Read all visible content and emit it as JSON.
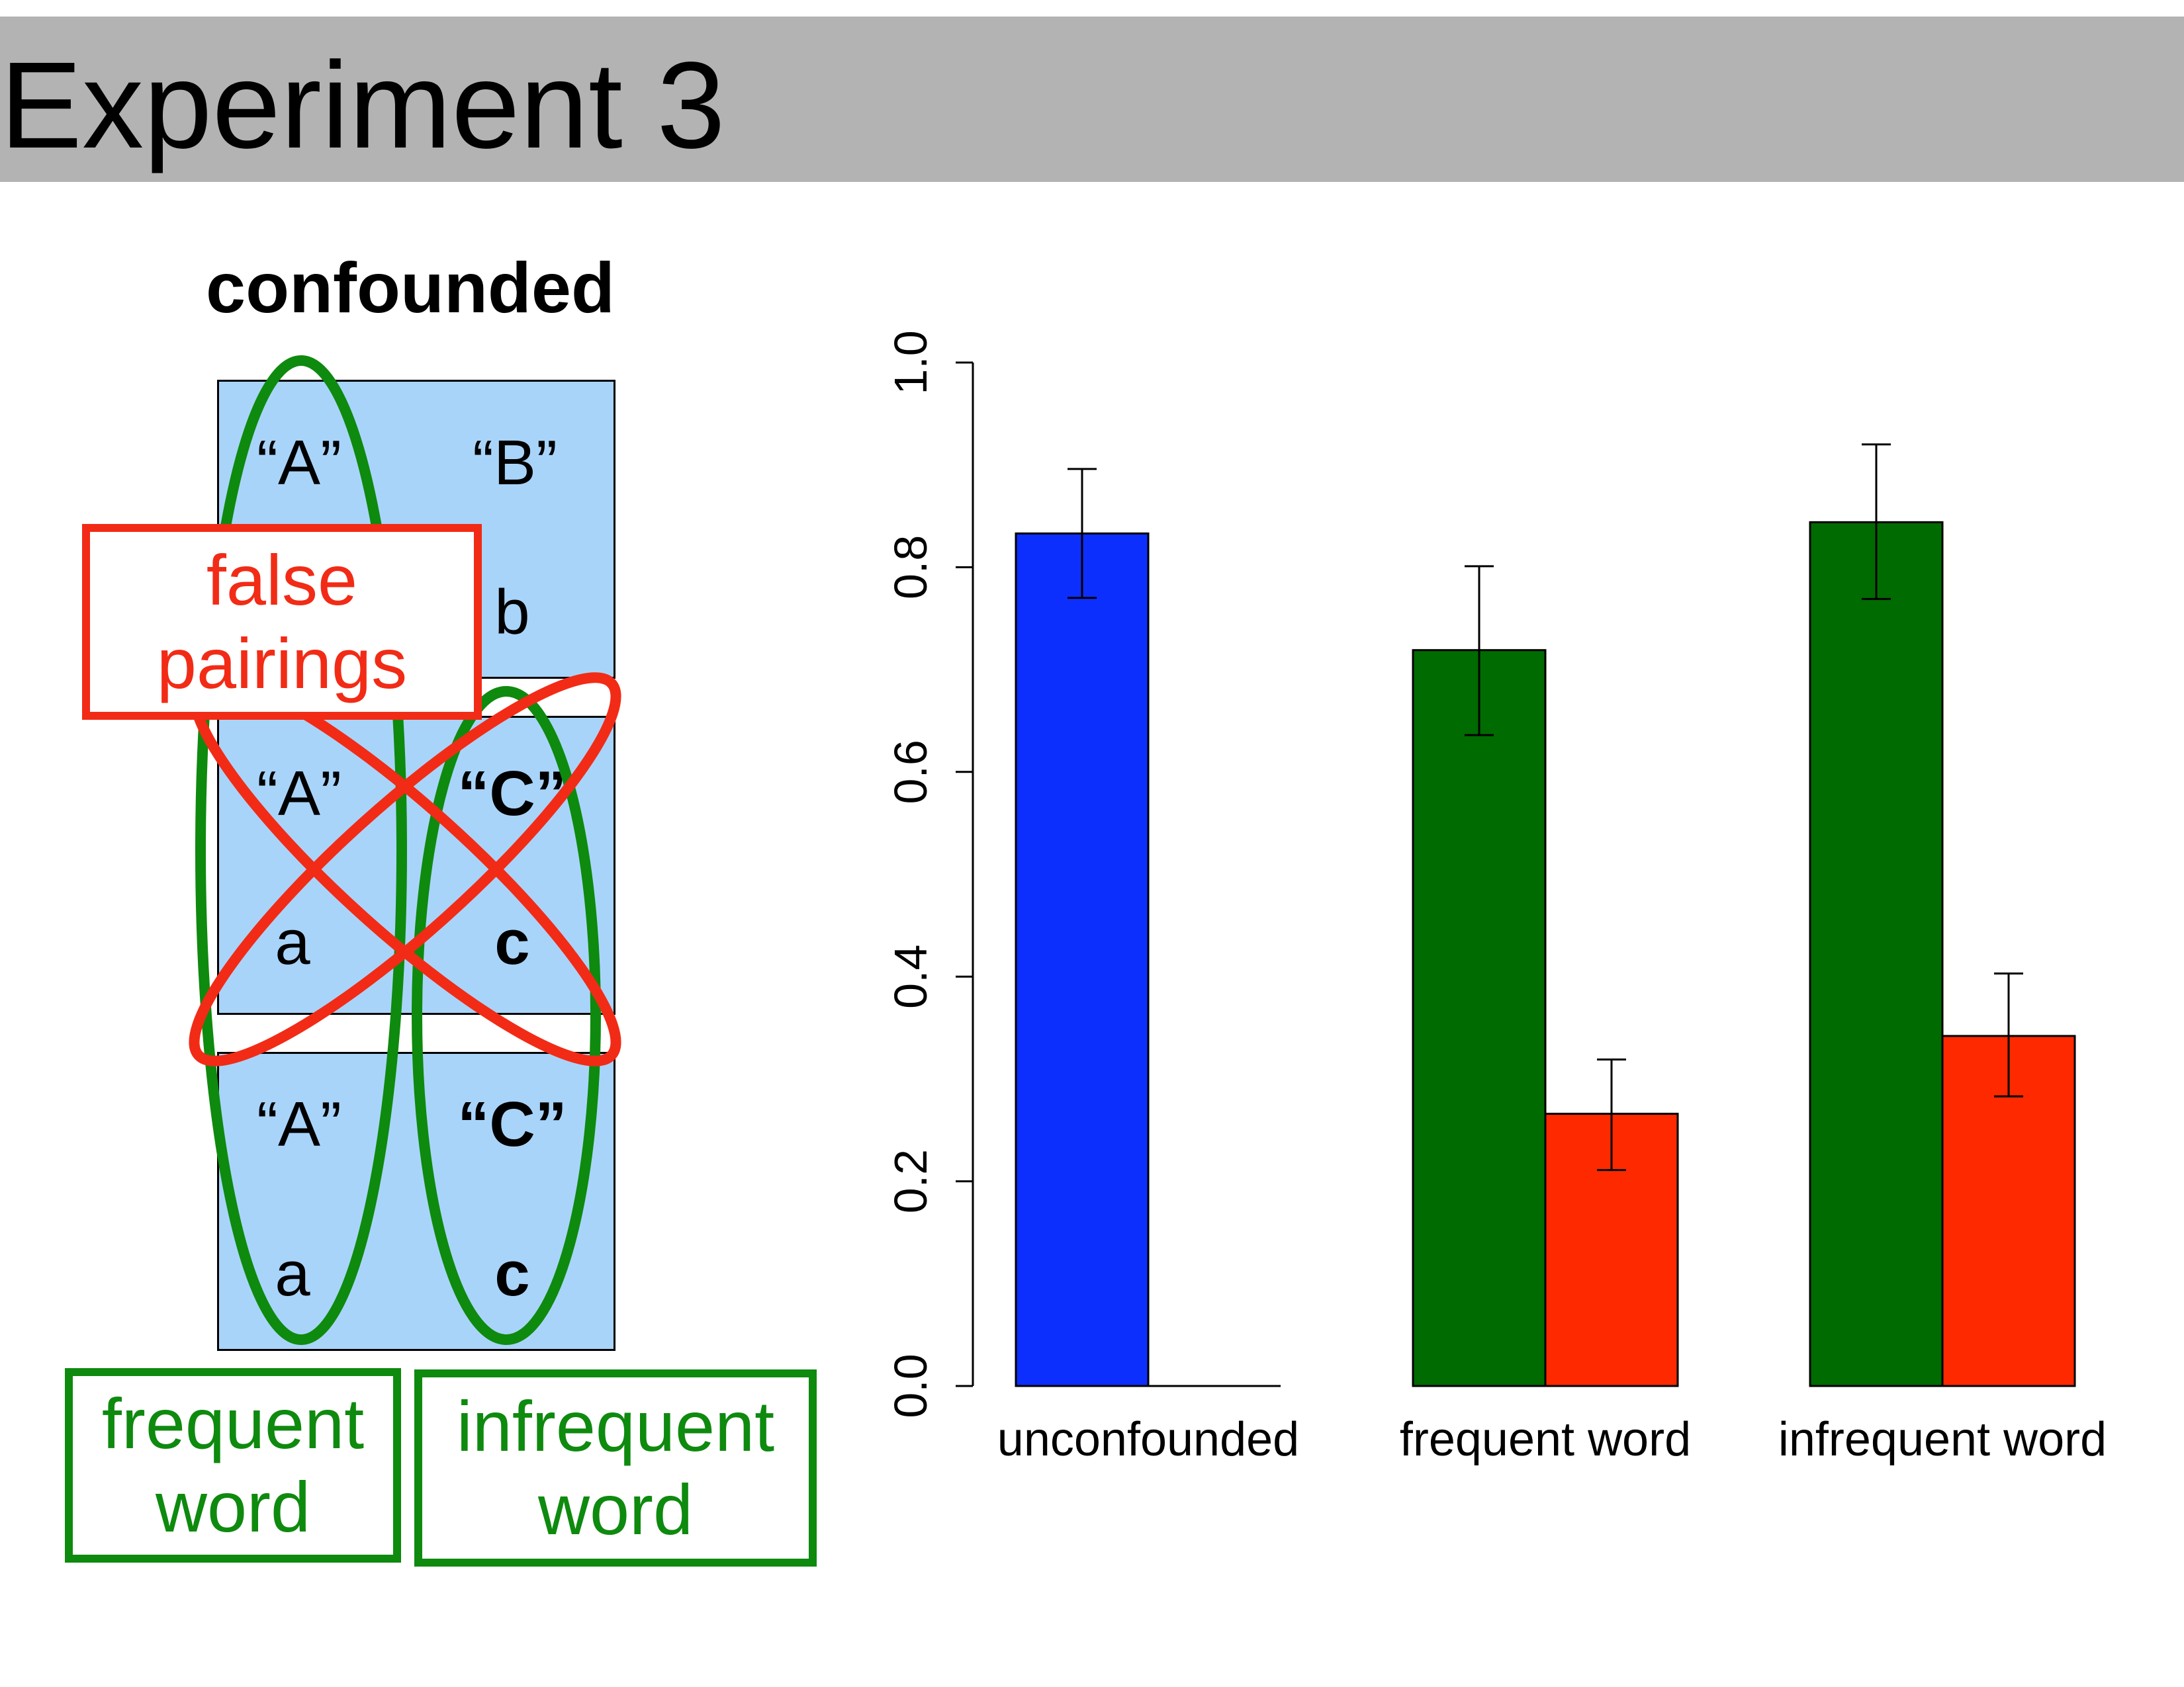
{
  "slide": {
    "title": "Experiment 3"
  },
  "diagram": {
    "title": "confounded",
    "boxes": [
      {
        "left_word": "“A”",
        "left_referent": "",
        "right_word": "“B”",
        "right_referent": "b",
        "right_bold": false
      },
      {
        "left_word": "“A”",
        "left_referent": "a",
        "right_word": "“C”",
        "right_referent": "c",
        "right_bold": true
      },
      {
        "left_word": "“A”",
        "left_referent": "a",
        "right_word": "“C”",
        "right_referent": "c",
        "right_bold": true
      }
    ],
    "false_label": [
      "false",
      "pairings"
    ],
    "frequent_label": [
      "frequent",
      "word"
    ],
    "infrequent_label": [
      "infrequent",
      "word"
    ],
    "colors": {
      "box_fill": "#a9d4fa",
      "green": "#0e8a0e",
      "red": "#f22b16"
    }
  },
  "chart_data": {
    "type": "bar",
    "categories": [
      "unconfounded",
      "frequent word",
      "infrequent word"
    ],
    "series": [
      {
        "color": "#0d2ffe",
        "values": [
          0.833,
          null,
          null
        ],
        "error_low": [
          0.77,
          null,
          null
        ],
        "error_high": [
          0.896,
          null,
          null
        ]
      },
      {
        "color": "#0d2ffe",
        "values": [
          0.0,
          null,
          null
        ]
      },
      {
        "color": "#006b00",
        "values": [
          null,
          0.719,
          0.844
        ],
        "error_low": [
          null,
          0.636,
          0.769
        ],
        "error_high": [
          null,
          0.801,
          0.92
        ]
      },
      {
        "color": "#ff2900",
        "values": [
          null,
          0.266,
          0.342
        ],
        "error_low": [
          null,
          0.211,
          0.283
        ],
        "error_high": [
          null,
          0.319,
          0.403
        ]
      }
    ],
    "ylim": [
      0,
      1
    ],
    "yticks": [
      "0.0",
      "0.2",
      "0.4",
      "0.6",
      "0.8",
      "1.0"
    ],
    "xlabel": "",
    "ylabel": "",
    "grid": false
  }
}
